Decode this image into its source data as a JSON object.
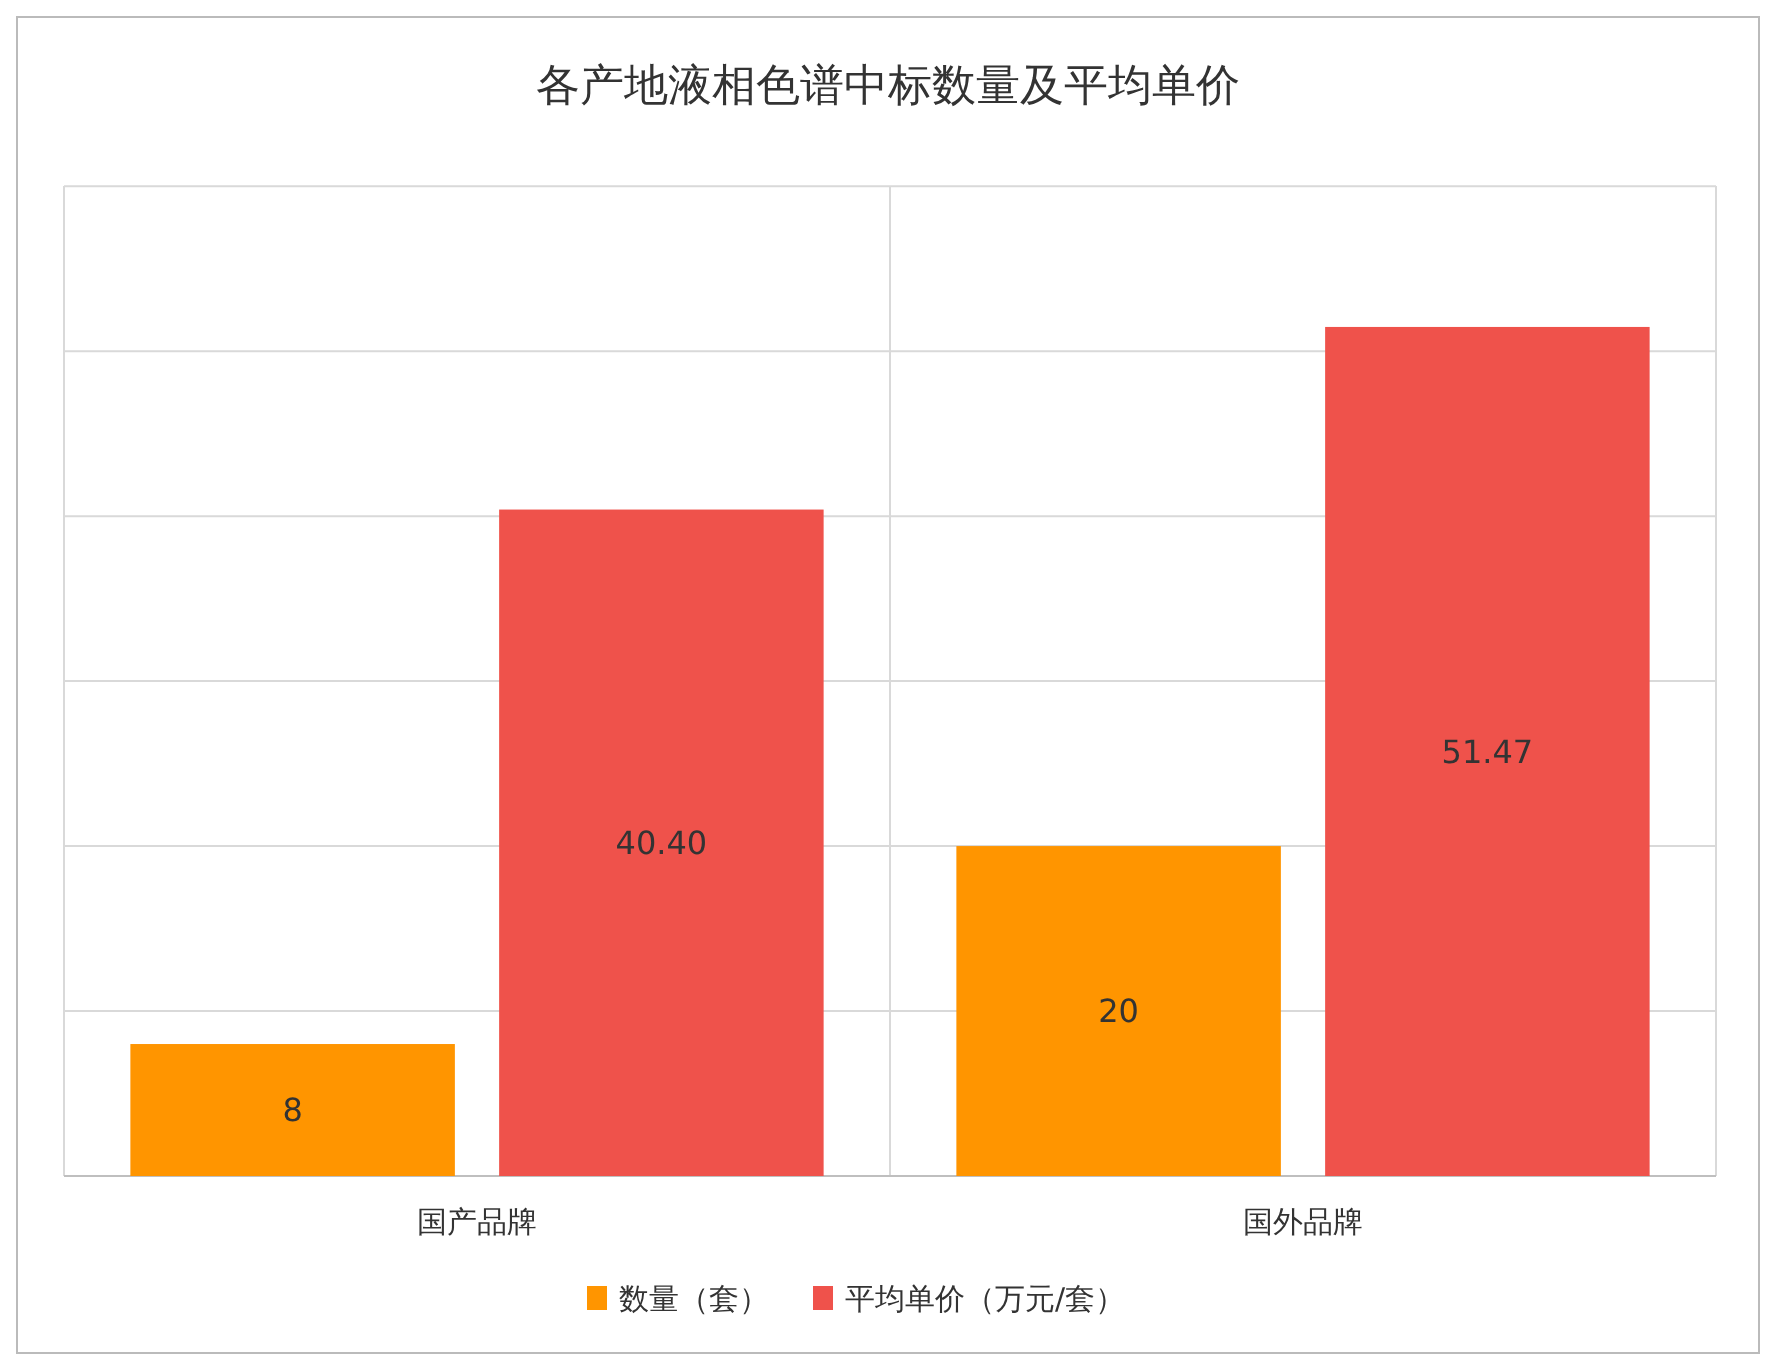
{
  "chart_data": {
    "type": "bar",
    "title": "各产地液相色谱中标数量及平均单价",
    "categories": [
      "国产品牌",
      "国外品牌"
    ],
    "series": [
      {
        "name": "数量（套）",
        "color": "#ff9500",
        "values": [
          8,
          20
        ],
        "value_labels": [
          "8",
          "20"
        ]
      },
      {
        "name": "平均单价（万元/套）",
        "color": "#ef524b",
        "values": [
          40.4,
          51.47
        ],
        "value_labels": [
          "40.40",
          "51.47"
        ]
      }
    ],
    "tick_labels": "x",
    "grid": true,
    "legend": "bottom"
  }
}
